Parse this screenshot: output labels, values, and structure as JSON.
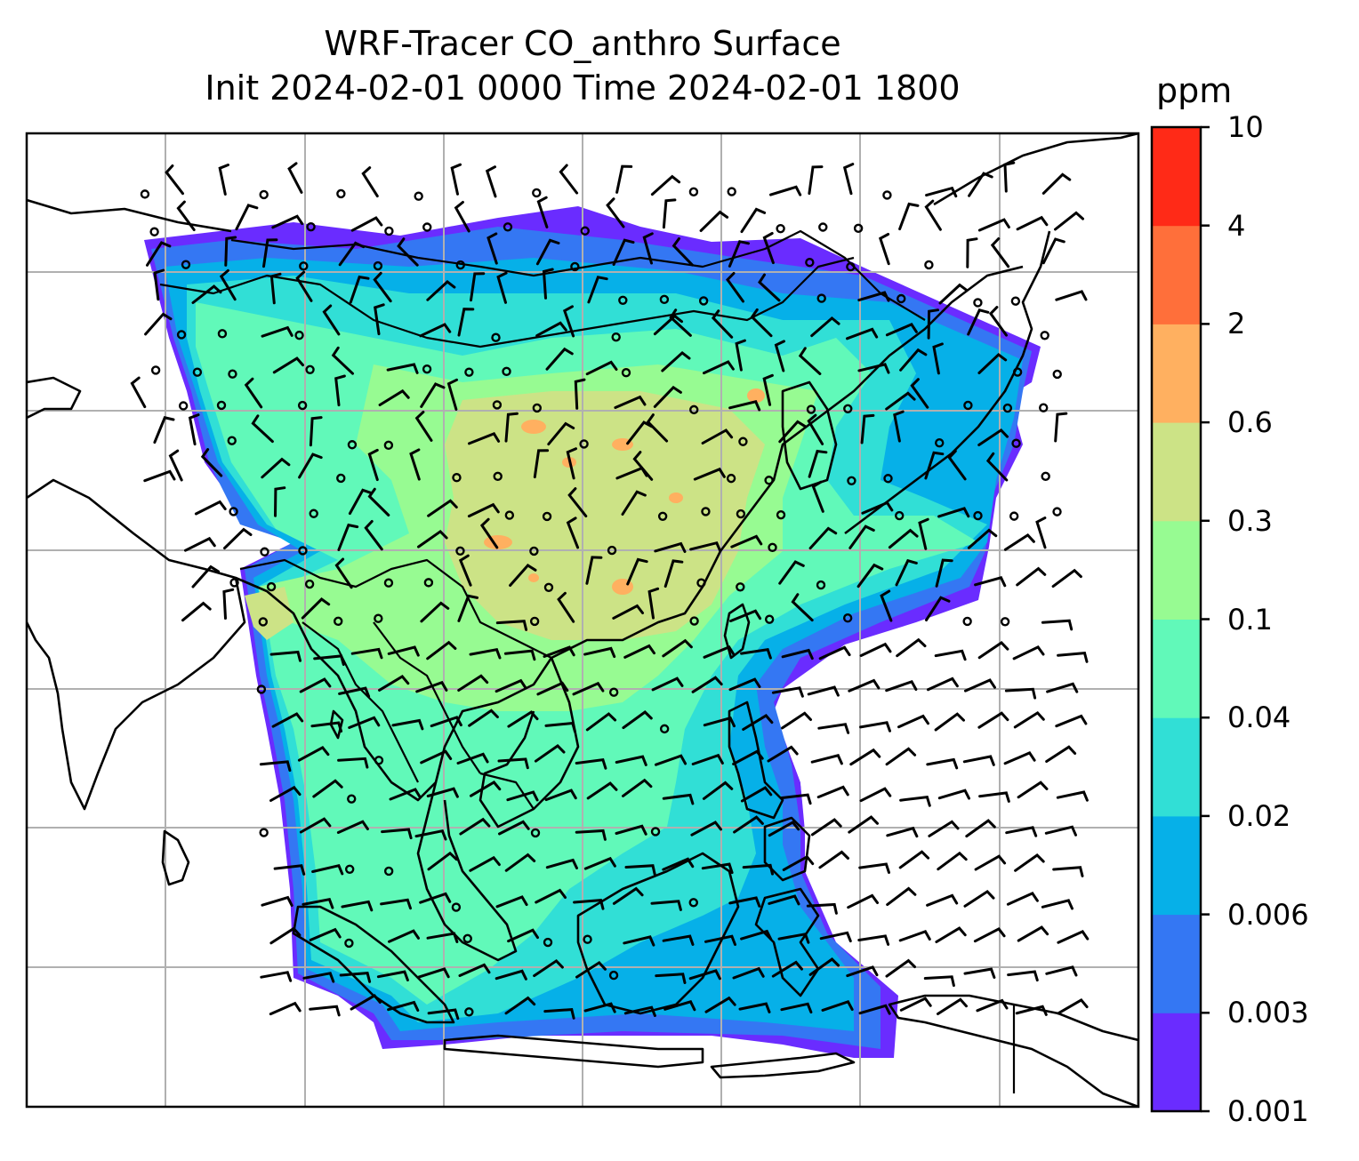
{
  "title": {
    "line1": "WRF-Tracer CO_anthro Surface",
    "line2": "Init 2024-02-01 0000 Time 2024-02-01 1800"
  },
  "colorbar": {
    "unit": "ppm",
    "levels": [
      "0.001",
      "0.003",
      "0.006",
      "0.02",
      "0.04",
      "0.1",
      "0.3",
      "0.6",
      "2",
      "4",
      "10"
    ],
    "colors": [
      "#6a2cff",
      "#3477f3",
      "#06b0e8",
      "#31dfd6",
      "#61f9b9",
      "#97fb92",
      "#cce386",
      "#ffb060",
      "#ff6f3a",
      "#ff2a17"
    ]
  },
  "map": {
    "gridlines": true,
    "features": [
      "coastlines",
      "country-borders",
      "wind-barbs",
      "calm-wind-circles"
    ]
  }
}
